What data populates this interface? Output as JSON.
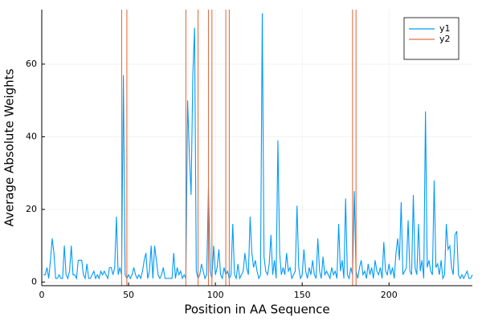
{
  "chart_data": {
    "type": "line",
    "xlabel": "Position in AA Sequence",
    "ylabel": "Average Absolute Weights",
    "xlim": [
      0,
      248
    ],
    "ylim": [
      -1,
      75
    ],
    "xticks": [
      0,
      50,
      100,
      150,
      200
    ],
    "yticks": [
      0,
      20,
      40,
      60
    ],
    "grid": true,
    "legend": "top-right",
    "series": [
      {
        "name": "y1",
        "color": "#009af9",
        "x": [
          1,
          2,
          3,
          4,
          5,
          6,
          7,
          8,
          9,
          10,
          11,
          12,
          13,
          14,
          15,
          16,
          17,
          18,
          19,
          20,
          21,
          22,
          23,
          24,
          25,
          26,
          27,
          28,
          29,
          30,
          31,
          32,
          33,
          34,
          35,
          36,
          37,
          38,
          39,
          40,
          41,
          42,
          43,
          44,
          45,
          46,
          47,
          48,
          49,
          50,
          51,
          52,
          53,
          54,
          55,
          56,
          57,
          58,
          59,
          60,
          61,
          62,
          63,
          64,
          65,
          66,
          67,
          68,
          69,
          70,
          71,
          72,
          73,
          74,
          75,
          76,
          77,
          78,
          79,
          80,
          81,
          82,
          83,
          84,
          85,
          86,
          87,
          88,
          89,
          90,
          91,
          92,
          93,
          94,
          95,
          96,
          97,
          98,
          99,
          100,
          101,
          102,
          103,
          104,
          105,
          106,
          107,
          108,
          109,
          110,
          111,
          112,
          113,
          114,
          115,
          116,
          117,
          118,
          119,
          120,
          121,
          122,
          123,
          124,
          125,
          126,
          127,
          128,
          129,
          130,
          131,
          132,
          133,
          134,
          135,
          136,
          137,
          138,
          139,
          140,
          141,
          142,
          143,
          144,
          145,
          146,
          147,
          148,
          149,
          150,
          151,
          152,
          153,
          154,
          155,
          156,
          157,
          158,
          159,
          160,
          161,
          162,
          163,
          164,
          165,
          166,
          167,
          168,
          169,
          170,
          171,
          172,
          173,
          174,
          175,
          176,
          177,
          178,
          179,
          180,
          181,
          182,
          183,
          184,
          185,
          186,
          187,
          188,
          189,
          190,
          191,
          192,
          193,
          194,
          195,
          196,
          197,
          198,
          199,
          200,
          201,
          202,
          203,
          204,
          205,
          206,
          207,
          208,
          209,
          210,
          211,
          212,
          213,
          214,
          215,
          216,
          217,
          218,
          219,
          220,
          221,
          222,
          223,
          224,
          225,
          226,
          227,
          228,
          229,
          230,
          231,
          232,
          233,
          234,
          235,
          236,
          237,
          238,
          239,
          240,
          241,
          242,
          243,
          244,
          245,
          246,
          247,
          248
        ],
        "values": [
          2,
          2,
          4,
          1,
          6,
          12,
          8,
          1,
          1,
          2,
          1,
          1,
          10,
          2,
          1,
          3,
          10,
          2,
          2,
          1,
          6,
          6,
          6,
          2,
          1,
          5,
          1,
          1,
          2,
          3,
          1,
          2,
          1,
          3,
          2,
          3,
          2,
          1,
          4,
          4,
          2,
          4,
          18,
          2,
          4,
          2,
          57,
          2,
          1,
          2,
          1,
          2,
          4,
          2,
          1,
          2,
          1,
          3,
          6,
          8,
          1,
          3,
          10,
          1,
          10,
          6,
          2,
          1,
          2,
          4,
          1,
          1,
          1,
          1,
          1,
          8,
          1,
          4,
          2,
          3,
          1,
          2,
          1,
          50,
          35,
          24,
          57,
          70,
          3,
          1,
          2,
          5,
          3,
          1,
          2,
          26,
          3,
          1,
          10,
          2,
          4,
          9,
          2,
          1,
          4,
          2,
          3,
          1,
          2,
          16,
          2,
          1,
          5,
          1,
          2,
          3,
          8,
          4,
          2,
          18,
          8,
          4,
          6,
          3,
          1,
          2,
          74,
          7,
          3,
          2,
          5,
          13,
          2,
          6,
          1,
          39,
          8,
          2,
          4,
          2,
          8,
          3,
          4,
          1,
          2,
          3,
          21,
          4,
          1,
          2,
          9,
          3,
          1,
          4,
          2,
          6,
          2,
          1,
          12,
          3,
          1,
          7,
          2,
          3,
          2,
          1,
          4,
          2,
          3,
          1,
          16,
          3,
          6,
          1,
          23,
          2,
          1,
          4,
          2,
          25,
          3,
          1,
          4,
          6,
          2,
          3,
          1,
          5,
          2,
          4,
          1,
          6,
          3,
          2,
          4,
          1,
          11,
          3,
          2,
          5,
          2,
          4,
          1,
          8,
          12,
          6,
          22,
          2,
          3,
          4,
          17,
          3,
          2,
          24,
          4,
          2,
          16,
          3,
          6,
          1,
          47,
          4,
          6,
          3,
          2,
          28,
          4,
          5,
          2,
          6,
          1,
          2,
          16,
          9,
          10,
          4,
          2,
          13,
          14,
          2,
          1,
          2,
          1,
          2,
          3,
          1,
          1,
          2
        ]
      },
      {
        "name": "y2",
        "color": "#e26f46",
        "vlines": [
          46,
          49,
          83,
          90,
          96,
          98,
          106,
          108,
          179,
          181
        ]
      }
    ]
  }
}
